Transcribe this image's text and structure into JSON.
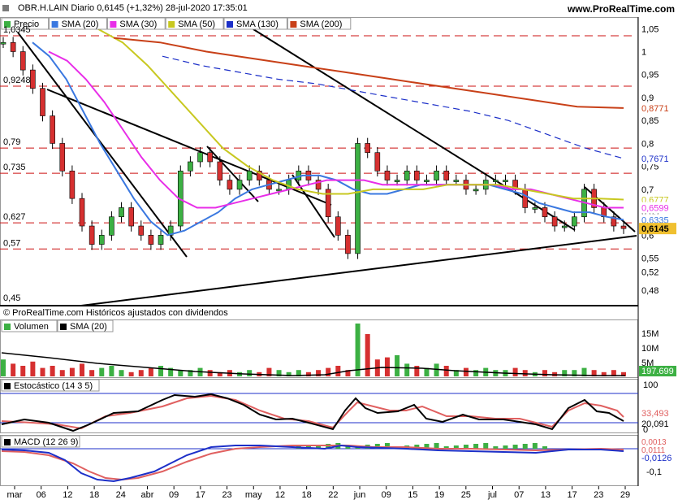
{
  "header": {
    "title": "OBR.H.LAIN Diario 0,6145 (+1,32%) 28-jul-2020 17:35:01",
    "site": "www.ProRealTime.com"
  },
  "colors": {
    "price_up": "#3cb043",
    "price_down": "#d63030",
    "sma20": "#3a78e0",
    "sma30": "#e82ee8",
    "sma50": "#c8c820",
    "sma130": "#1c2fc8",
    "sma200": "#c84018",
    "hline": "#cc1010",
    "volume": "#000000",
    "stoch_k": "#000000",
    "stoch_d": "#e06060",
    "macd_line": "#1c2fc8",
    "macd_signal": "#e06060",
    "macd_hist": "#3cb043"
  },
  "price_panel": {
    "legend": [
      {
        "label": "Precio",
        "color": "#3cb043"
      },
      {
        "label": "SMA (20)",
        "color": "#3a78e0"
      },
      {
        "label": "SMA (30)",
        "color": "#e82ee8"
      },
      {
        "label": "SMA (50)",
        "color": "#c8c820"
      },
      {
        "label": "SMA (130)",
        "color": "#1c2fc8"
      },
      {
        "label": "SMA (200)",
        "color": "#c84018"
      }
    ],
    "left_levels": [
      {
        "label": "1,0345",
        "v": 1.0345
      },
      {
        "label": "0,9248",
        "v": 0.9248
      },
      {
        "label": "0,79",
        "v": 0.79
      },
      {
        "label": "0,735",
        "v": 0.735
      },
      {
        "label": "0,627",
        "v": 0.627
      },
      {
        "label": "0,57",
        "v": 0.57
      },
      {
        "label": "0,45",
        "v": 0.45
      }
    ],
    "right_ticks": [
      "1,05",
      "1",
      "0,95",
      "0,9",
      "0,85",
      "0,8",
      "0,75",
      "0,7",
      "0,65",
      "0,6",
      "0,55",
      "0,52",
      "0,48"
    ],
    "right_badges": [
      {
        "label": "0,8771",
        "v": 0.8771,
        "color": "#c84018"
      },
      {
        "label": "0,7671",
        "v": 0.7671,
        "color": "#1c2fc8"
      },
      {
        "label": "0,6777",
        "v": 0.6777,
        "color": "#c8c820"
      },
      {
        "label": "0,6599",
        "v": 0.6599,
        "color": "#e82ee8"
      },
      {
        "label": "0,6335",
        "v": 0.6335,
        "color": "#3a78e0"
      },
      {
        "label": "0,6145",
        "v": 0.6145,
        "color": "#000000"
      }
    ],
    "footer": "© ProRealTime.com  Históricos ajustados con dividendos"
  },
  "volume_panel": {
    "legend": [
      {
        "label": "Volumen",
        "color": "#000000"
      },
      {
        "label": "SMA (20)",
        "color": "#000000"
      }
    ],
    "ticks": [
      "15M",
      "10M",
      "5M"
    ],
    "badge": "197.699"
  },
  "stoch_panel": {
    "legend": "Estocástico (14 3 5)",
    "ticks": [
      "100",
      "0"
    ],
    "badges": [
      {
        "label": "33,493",
        "color": "#e06060"
      },
      {
        "label": "20,091",
        "color": "#000000"
      }
    ]
  },
  "macd_panel": {
    "legend": "MACD (12 26 9)",
    "ticks": [
      "-0,1"
    ],
    "badges": [
      {
        "label": "0,0013",
        "color": "#e06060"
      },
      {
        "label": "0,0111",
        "color": "#e06060"
      },
      {
        "label": "-0,0126",
        "color": "#1c2fc8"
      }
    ]
  },
  "x_axis": [
    "mar",
    "06",
    "12",
    "18",
    "24",
    "abr",
    "09",
    "17",
    "23",
    "may",
    "12",
    "18",
    "22",
    "jun",
    "09",
    "15",
    "19",
    "25",
    "jul",
    "07",
    "13",
    "17",
    "23",
    "29"
  ],
  "chart_data": {
    "type": "line",
    "series": [
      {
        "name": "Precio",
        "values": [
          1.02,
          1.0,
          0.96,
          0.92,
          0.86,
          0.8,
          0.74,
          0.68,
          0.62,
          0.58,
          0.6,
          0.64,
          0.66,
          0.62,
          0.6,
          0.58,
          0.6,
          0.62,
          0.74,
          0.76,
          0.78,
          0.76,
          0.72,
          0.7,
          0.72,
          0.74,
          0.72,
          0.7,
          0.7,
          0.72,
          0.74,
          0.72,
          0.7,
          0.64,
          0.6,
          0.56,
          0.8,
          0.78,
          0.74,
          0.72,
          0.72,
          0.74,
          0.72,
          0.72,
          0.74,
          0.72,
          0.72,
          0.7,
          0.7,
          0.72,
          0.72,
          0.72,
          0.7,
          0.66,
          0.66,
          0.64,
          0.62,
          0.62,
          0.64,
          0.7,
          0.66,
          0.64,
          0.62,
          0.6145
        ]
      },
      {
        "name": "SMA (20)",
        "values": [
          1.02,
          0.99,
          0.94,
          0.87,
          0.8,
          0.74,
          0.68,
          0.63,
          0.6,
          0.61,
          0.63,
          0.65,
          0.68,
          0.7,
          0.71,
          0.72,
          0.73,
          0.73,
          0.72,
          0.7,
          0.69,
          0.69,
          0.7,
          0.71,
          0.71,
          0.71,
          0.71,
          0.71,
          0.7,
          0.69,
          0.67,
          0.66,
          0.65,
          0.65,
          0.64,
          0.6335
        ]
      },
      {
        "name": "SMA (30)",
        "values": [
          1.0,
          0.98,
          0.94,
          0.89,
          0.83,
          0.77,
          0.72,
          0.68,
          0.66,
          0.66,
          0.67,
          0.68,
          0.69,
          0.7,
          0.71,
          0.72,
          0.72,
          0.72,
          0.71,
          0.71,
          0.71,
          0.71,
          0.71,
          0.71,
          0.71,
          0.7,
          0.7,
          0.69,
          0.68,
          0.67,
          0.66,
          0.6599
        ]
      },
      {
        "name": "SMA (50)",
        "values": [
          1.05,
          1.02,
          0.97,
          0.91,
          0.85,
          0.79,
          0.75,
          0.72,
          0.7,
          0.69,
          0.69,
          0.7,
          0.7,
          0.7,
          0.71,
          0.71,
          0.71,
          0.7,
          0.69,
          0.68,
          0.68,
          0.6777
        ]
      },
      {
        "name": "SMA (130)",
        "values": [
          0.99,
          0.97,
          0.955,
          0.94,
          0.93,
          0.915,
          0.9,
          0.885,
          0.87,
          0.85,
          0.82,
          0.79,
          0.7671
        ]
      },
      {
        "name": "SMA (200)",
        "values": [
          1.03,
          1.02,
          1.0,
          0.985,
          0.97,
          0.955,
          0.94,
          0.925,
          0.91,
          0.895,
          0.88,
          0.8771
        ]
      }
    ],
    "ylim": [
      0.45,
      1.07
    ]
  }
}
